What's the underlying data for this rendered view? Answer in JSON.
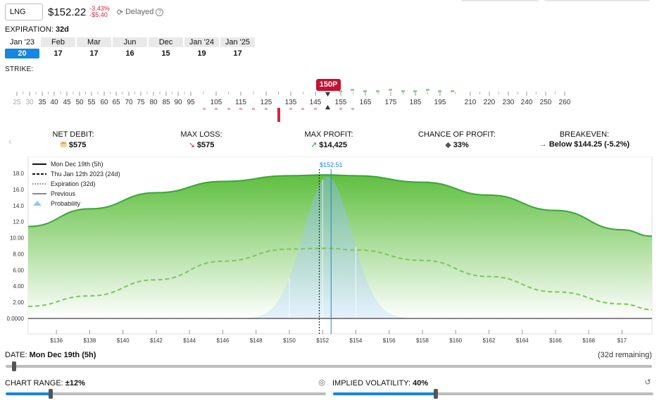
{
  "header": {
    "ticker": "LNG",
    "price": "$152.22",
    "change_pct": "-3.43%",
    "change_abs": "-$5.40",
    "delayed": "Delayed"
  },
  "expiration": {
    "label": "EXPIRATION:",
    "value": "32d",
    "months": [
      {
        "month": "Jan '23",
        "day": "20",
        "selected": true,
        "shaded": false
      },
      {
        "month": "Feb",
        "day": "17",
        "selected": false,
        "shaded": true
      },
      {
        "month": "Mar",
        "day": "17",
        "selected": false,
        "shaded": true
      },
      {
        "month": "Jun",
        "day": "16",
        "selected": false,
        "shaded": true
      },
      {
        "month": "Dec",
        "day": "15",
        "selected": false,
        "shaded": true
      },
      {
        "month": "Jan '24",
        "day": "19",
        "selected": false,
        "shaded": true
      },
      {
        "month": "Jan '25",
        "day": "17",
        "selected": false,
        "shaded": true
      }
    ]
  },
  "strike": {
    "label": "STRIKE:",
    "selected_badge": "150P",
    "labels": [
      "25",
      "30",
      "35",
      "40",
      "45",
      "50",
      "55",
      "60",
      "65",
      "70",
      "75",
      "80",
      "85",
      "90",
      "95",
      "105",
      "115",
      "125",
      "135",
      "145",
      "155",
      "165",
      "175",
      "185",
      "195",
      "210",
      "220",
      "230",
      "240",
      "250",
      "260"
    ]
  },
  "metrics": [
    {
      "label": "NET DEBIT:",
      "value": "$575",
      "icon": "coins-icon"
    },
    {
      "label": "MAX LOSS:",
      "value": "$575",
      "icon": "arrow-down-right-icon"
    },
    {
      "label": "MAX PROFIT:",
      "value": "$14,425",
      "icon": "arrow-up-right-icon"
    },
    {
      "label": "CHANCE OF PROFIT:",
      "value": "33%",
      "icon": "dice-icon"
    },
    {
      "label": "BREAKEVEN:",
      "value": "Below $144.25 (-5.2%)",
      "icon": "arrow-right-icon"
    }
  ],
  "chart_data": {
    "type": "area",
    "y_ticks": [
      "18.0",
      "16.0",
      "14.0",
      "12.0",
      "10.00",
      "8.00",
      "6.00",
      "4.00",
      "2.00",
      "0.0000"
    ],
    "x_ticks": [
      "$136",
      "$138",
      "$140",
      "$142",
      "$144",
      "$146",
      "$148",
      "$150",
      "$152",
      "$154",
      "$156",
      "$158",
      "$160",
      "$162",
      "$164",
      "$166",
      "$168",
      "$17"
    ],
    "current_price_label": "$152.51",
    "legend": [
      {
        "name": "Mon Dec 19th (5h)",
        "style": "solid"
      },
      {
        "name": "Thu Jan 12th 2023 (24d)",
        "style": "dashed"
      },
      {
        "name": "Expiration (32d)",
        "style": "dotted"
      },
      {
        "name": "Previous",
        "style": "thin"
      },
      {
        "name": "Probability",
        "style": "area"
      }
    ],
    "ylim": [
      0,
      18
    ],
    "xlim": [
      134.3,
      171.8
    ],
    "series": [
      {
        "name": "Mon Dec 19th (5h)",
        "x": [
          134.3,
          138,
          142,
          146,
          150,
          152.2,
          154,
          158,
          162,
          166,
          170,
          171.8
        ],
        "y": [
          11.4,
          13.6,
          15.6,
          17.0,
          17.7,
          17.8,
          17.7,
          16.9,
          15.3,
          13.4,
          11.0,
          10.2
        ]
      },
      {
        "name": "Thu Jan 12th 2023 (24d)",
        "x": [
          134.3,
          138,
          142,
          146,
          150,
          152.2,
          154,
          158,
          162,
          166,
          170,
          171.8
        ],
        "y": [
          1.5,
          2.8,
          4.8,
          7.1,
          8.6,
          8.7,
          8.5,
          7.2,
          5.2,
          3.3,
          1.8,
          1.1
        ]
      }
    ]
  },
  "date": {
    "label": "DATE:",
    "value": "Mon Dec 19th (5h)",
    "remaining": "(32d remaining)"
  },
  "chart_range": {
    "label": "CHART RANGE:",
    "value": "±12%",
    "level": 0.14
  },
  "implied_volatility": {
    "label": "IMPLIED VOLATILITY:",
    "value": "40%",
    "level": 0.32
  },
  "date_level": 0.01,
  "colors": {
    "accent": "#1686e0",
    "loss": "#d0283f",
    "profit": "#3aa53a",
    "badge": "#c8102e"
  }
}
